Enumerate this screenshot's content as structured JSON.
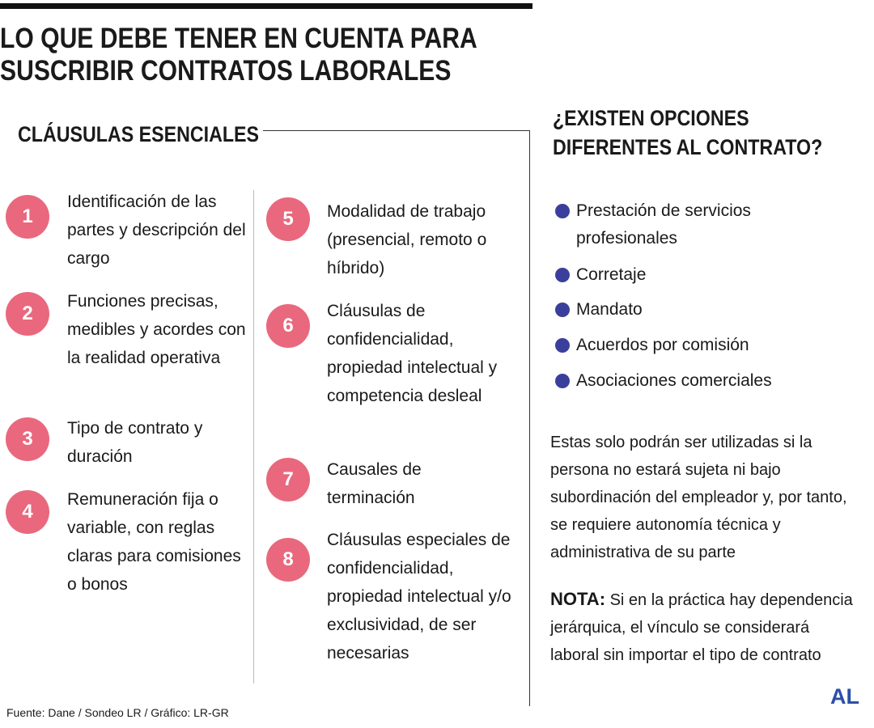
{
  "header": {
    "title": "LO QUE DEBE TENER EN CUENTA PARA SUSCRIBIR CONTRATOS LABORALES"
  },
  "clauses": {
    "title": "CLÁUSULAS ESENCIALES",
    "items": [
      {
        "number": 1,
        "text": "Identificación de las partes y descripción del cargo"
      },
      {
        "number": 2,
        "text": "Funciones precisas, medibles y acordes con la realidad operativa"
      },
      {
        "number": 3,
        "text": "Tipo de contrato y duración"
      },
      {
        "number": 4,
        "text": "Remuneración fija o variable, con reglas claras para comisiones o bonos"
      },
      {
        "number": 5,
        "text": "Modalidad de trabajo (presencial, remoto o híbrido)"
      },
      {
        "number": 6,
        "text": "Cláusulas de confidencialidad, propiedad intelectual y competencia desleal"
      },
      {
        "number": 7,
        "text": "Causales de terminación"
      },
      {
        "number": 8,
        "text": "Cláusulas especiales de confidencialidad, propiedad intelectual y/o exclusividad, de ser necesarias"
      }
    ]
  },
  "options": {
    "title": "¿EXISTEN OPCIONES DIFERENTES AL CONTRATO?",
    "items": [
      "Prestación de servicios profesionales",
      "Corretaje",
      "Mandato",
      "Acuerdos por comisión",
      "Asociaciones comerciales"
    ],
    "paragraph": "Estas solo podrán ser utilizadas si la persona no estará sujeta ni bajo subordinación del empleador y, por tanto, se requiere autonomía técnica y administrativa de su parte",
    "note_label": "NOTA:",
    "note": "Si en la práctica hay dependencia jerárquica, el vínculo se considerará laboral sin importar el tipo de contrato"
  },
  "footer": {
    "source": "Fuente: Dane / Sondeo LR / Gráfico: LR-GR",
    "logo": "AL"
  }
}
